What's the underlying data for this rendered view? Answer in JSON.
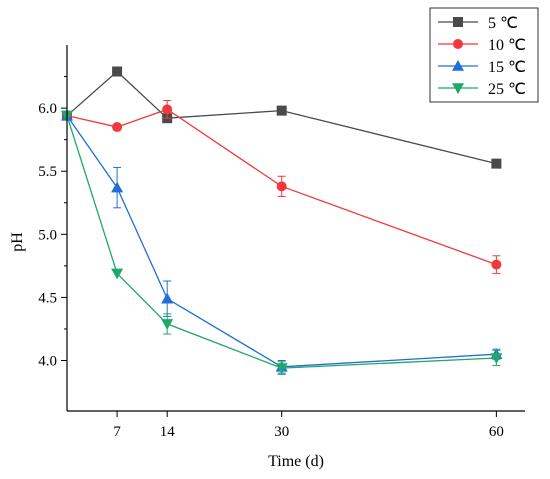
{
  "chart_data": {
    "type": "line",
    "xlabel": "Time (d)",
    "ylabel": "pH",
    "x_ticks": [
      7,
      14,
      30,
      60
    ],
    "y_ticks": [
      4.0,
      4.5,
      5.0,
      5.5,
      6.0
    ],
    "xlim": [
      0,
      64
    ],
    "ylim": [
      3.6,
      6.5
    ],
    "grid": false,
    "legend_position": "top-right",
    "series": [
      {
        "name": "5 ℃",
        "color": "#4a4a4a",
        "marker": "square",
        "x": [
          0,
          7,
          14,
          30,
          60
        ],
        "y": [
          5.94,
          6.29,
          5.92,
          5.98,
          5.56
        ],
        "error": [
          0,
          0,
          0,
          0,
          0
        ]
      },
      {
        "name": "10 ℃",
        "color": "#f2383b",
        "marker": "circle",
        "x": [
          0,
          7,
          14,
          30,
          60
        ],
        "y": [
          5.94,
          5.85,
          5.99,
          5.38,
          4.76
        ],
        "error": [
          0,
          0,
          0.07,
          0.08,
          0.07
        ]
      },
      {
        "name": "15 ℃",
        "color": "#1f6fd6",
        "marker": "triangle-up",
        "x": [
          0,
          7,
          14,
          30,
          60
        ],
        "y": [
          5.94,
          5.37,
          4.49,
          3.95,
          4.05
        ],
        "error": [
          0,
          0.16,
          0.14,
          0.05,
          0.04
        ]
      },
      {
        "name": "25 ℃",
        "color": "#1fa86a",
        "marker": "triangle-down",
        "x": [
          0,
          7,
          14,
          30,
          60
        ],
        "y": [
          5.94,
          4.69,
          4.29,
          3.94,
          4.02
        ],
        "error": [
          0,
          0,
          0.08,
          0.05,
          0.06
        ]
      }
    ]
  }
}
